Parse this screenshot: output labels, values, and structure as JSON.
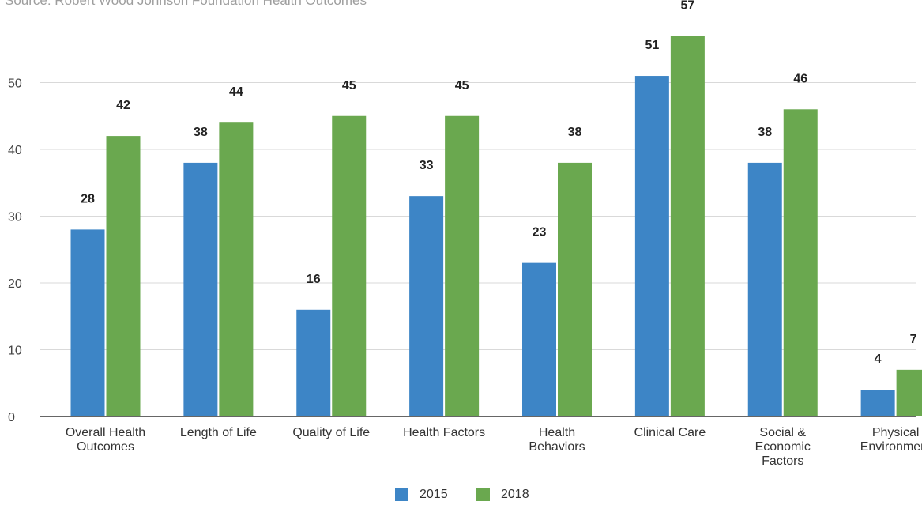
{
  "source_note": "Source: Robert Wood Johnson Foundation Health Outcomes",
  "chart_data": {
    "type": "bar",
    "categories": [
      [
        "Overall Health",
        "Outcomes"
      ],
      [
        "Length of Life"
      ],
      [
        "Quality of Life"
      ],
      [
        "Health Factors"
      ],
      [
        "Health",
        "Behaviors"
      ],
      [
        "Clinical Care"
      ],
      [
        "Social &",
        "Economic",
        "Factors"
      ],
      [
        "Physical",
        "Environment"
      ]
    ],
    "series": [
      {
        "name": "2015",
        "color": "#3d85c6",
        "values": [
          28,
          38,
          16,
          33,
          23,
          51,
          38,
          4
        ]
      },
      {
        "name": "2018",
        "color": "#6aa84f",
        "values": [
          42,
          44,
          45,
          45,
          38,
          57,
          46,
          7
        ]
      }
    ],
    "ylim": [
      0,
      60
    ],
    "yticks": [
      0,
      10,
      20,
      30,
      40,
      50
    ],
    "grid": true,
    "legend_position": "bottom-center"
  }
}
